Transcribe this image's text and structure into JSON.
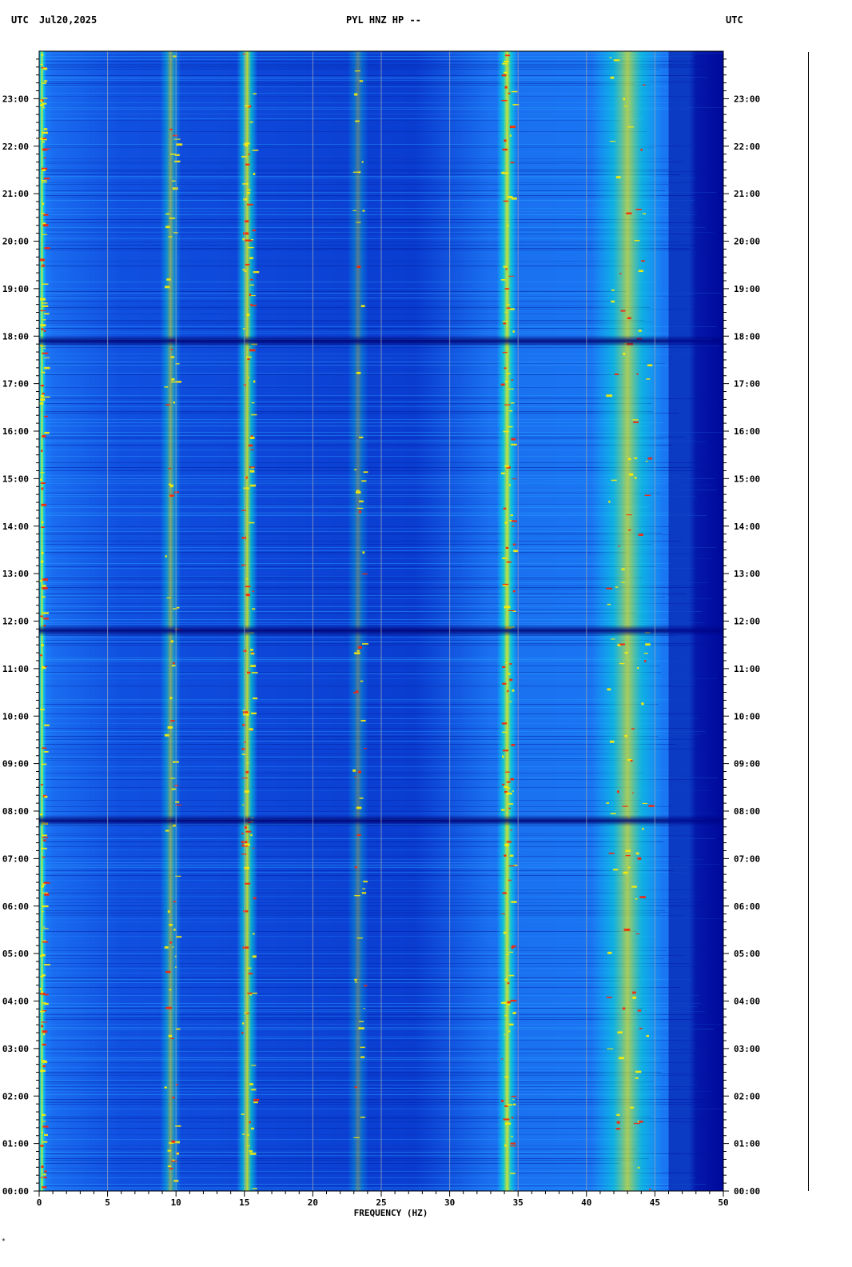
{
  "header": {
    "left_utc": "UTC",
    "date": "Jul20,2025",
    "station": "PYL HNZ HP --",
    "right_utc": "UTC"
  },
  "corner_mark": "*",
  "chart_data": {
    "type": "heatmap",
    "xlabel": "FREQUENCY (HZ)",
    "ylabel": "",
    "xlim": [
      0,
      50
    ],
    "ylim": [
      "00:00",
      "24:00"
    ],
    "x_ticks": [
      "0",
      "5",
      "10",
      "15",
      "20",
      "25",
      "30",
      "35",
      "40",
      "45",
      "50"
    ],
    "y_ticks": [
      "00:00",
      "01:00",
      "02:00",
      "03:00",
      "04:00",
      "05:00",
      "06:00",
      "07:00",
      "08:00",
      "09:00",
      "10:00",
      "11:00",
      "12:00",
      "13:00",
      "14:00",
      "15:00",
      "16:00",
      "17:00",
      "18:00",
      "19:00",
      "20:00",
      "21:00",
      "22:00",
      "23:00"
    ],
    "grid": true,
    "colormap": [
      "#000080",
      "#0000ff",
      "#00ffff",
      "#ffff00",
      "#ff0000"
    ],
    "background_color": "#0b3fd0",
    "spectral_bands_hz": [
      {
        "freq": 0.2,
        "intensity": 0.95
      },
      {
        "freq": 9.6,
        "intensity": 0.55
      },
      {
        "freq": 15.2,
        "intensity": 0.85
      },
      {
        "freq": 23.3,
        "intensity": 0.35
      },
      {
        "freq": 34.2,
        "intensity": 0.9
      },
      {
        "freq": 43.0,
        "intensity": 0.7
      }
    ],
    "low_energy_hours": [
      7.8,
      11.8,
      17.9
    ]
  }
}
